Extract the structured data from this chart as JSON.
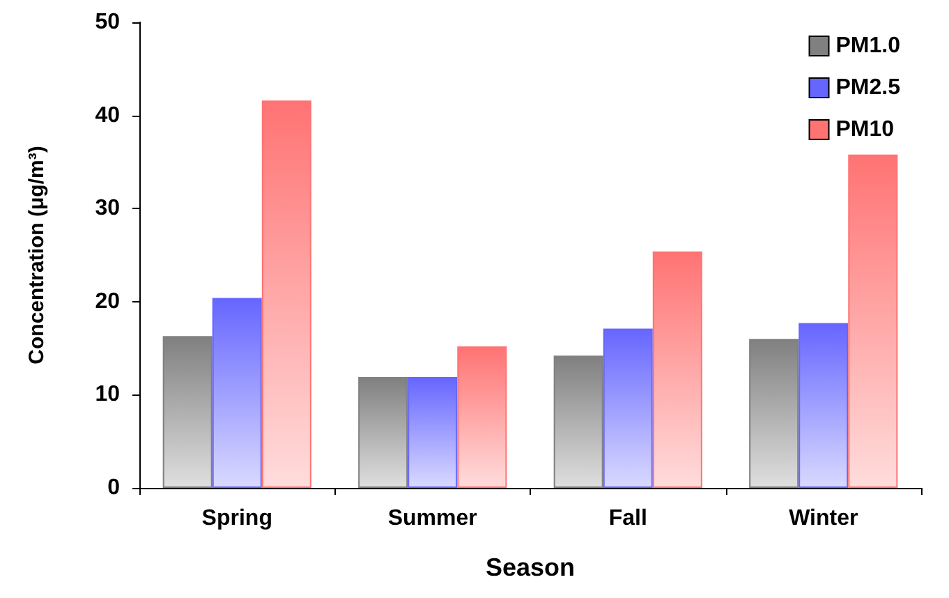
{
  "chart_data": {
    "type": "bar",
    "xlabel": "Season",
    "ylabel": "Concentration (μg/m³)",
    "categories": [
      "Spring",
      "Summer",
      "Fall",
      "Winter"
    ],
    "series": [
      {
        "name": "PM1.0",
        "color": "#808080",
        "values": [
          16.3,
          11.9,
          14.2,
          16.0
        ]
      },
      {
        "name": "PM2.5",
        "color": "#6666ff",
        "values": [
          20.4,
          11.9,
          17.1,
          17.7
        ]
      },
      {
        "name": "PM10",
        "color": "#ff7373",
        "values": [
          41.6,
          15.2,
          25.4,
          35.8
        ]
      }
    ],
    "ylim": [
      0,
      50
    ],
    "yticks": [
      0,
      10,
      20,
      30,
      40,
      50
    ],
    "grid": false,
    "legend": "top right"
  }
}
